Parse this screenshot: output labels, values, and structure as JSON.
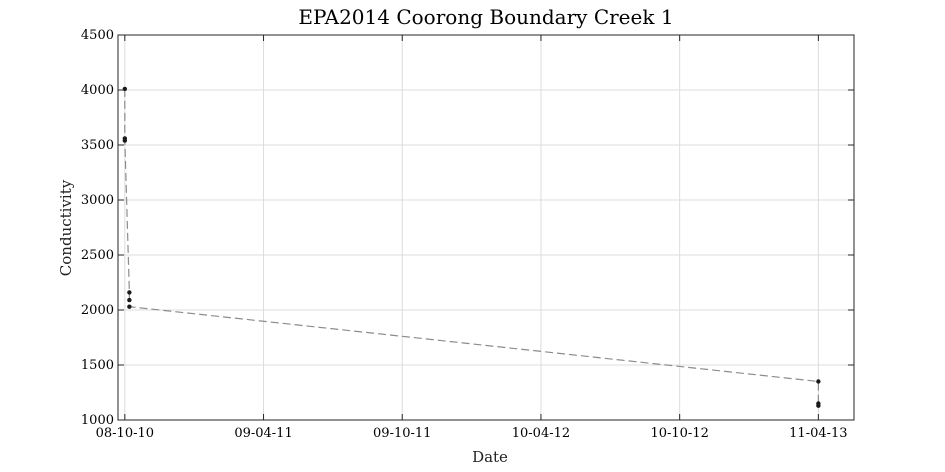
{
  "chart_data": {
    "type": "line",
    "title": "EPA2014 Coorong Boundary Creek 1",
    "xlabel": "Date",
    "ylabel": "Conductivity",
    "ylim": [
      1000,
      4500
    ],
    "xlim": [
      "2008-10-01",
      "2011-05-30"
    ],
    "yticks": [
      1000,
      1500,
      2000,
      2500,
      3000,
      3500,
      4000,
      4500
    ],
    "xticks": [
      {
        "date": "2008-10-10",
        "label": "08-10-10"
      },
      {
        "date": "2009-04-11",
        "label": "09-04-11"
      },
      {
        "date": "2009-10-11",
        "label": "09-10-11"
      },
      {
        "date": "2010-04-12",
        "label": "10-04-12"
      },
      {
        "date": "2010-10-12",
        "label": "10-10-12"
      },
      {
        "date": "2011-04-13",
        "label": "11-04-13"
      }
    ],
    "grid": true,
    "line_style": "dashed",
    "series": [
      {
        "points": [
          {
            "x": "2008-10-10",
            "y": 4010
          },
          {
            "x": "2008-10-10",
            "y": 3560
          },
          {
            "x": "2008-10-10",
            "y": 3540
          },
          {
            "x": "2008-10-16",
            "y": 2160
          },
          {
            "x": "2008-10-16",
            "y": 2090
          },
          {
            "x": "2008-10-16",
            "y": 2030
          },
          {
            "x": "2011-04-13",
            "y": 1350
          },
          {
            "x": "2011-04-13",
            "y": 1150
          },
          {
            "x": "2011-04-13",
            "y": 1130
          }
        ],
        "color": "#8c8c8c",
        "marker_color": "#1a1a1a"
      }
    ]
  }
}
